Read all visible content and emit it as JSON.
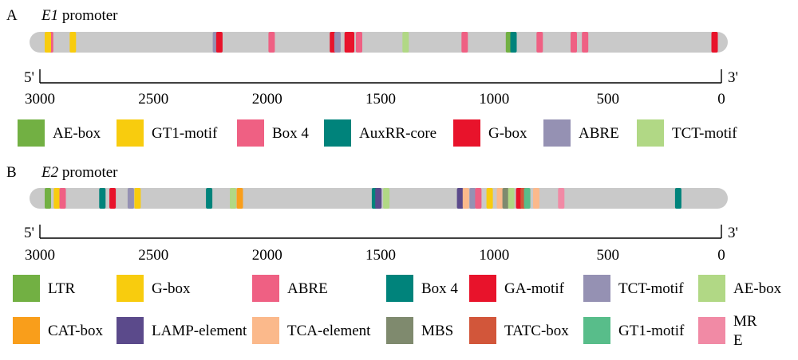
{
  "panels": [
    {
      "letter": "A",
      "gene": "E1",
      "title_suffix": " promoter",
      "end5": "5'",
      "end3": "3'",
      "ticks": [
        3000,
        2500,
        2000,
        1500,
        1000,
        500,
        0
      ],
      "elements": [
        {
          "pos": 2955,
          "type": "Box 4"
        },
        {
          "pos": 2965,
          "type": "GT1-motif"
        },
        {
          "pos": 2855,
          "type": "GT1-motif"
        },
        {
          "pos": 2225,
          "type": "ABRE"
        },
        {
          "pos": 2210,
          "type": "G-box"
        },
        {
          "pos": 1980,
          "type": "Box 4"
        },
        {
          "pos": 1710,
          "type": "G-box"
        },
        {
          "pos": 1690,
          "type": "ABRE"
        },
        {
          "pos": 1645,
          "type": "G-box"
        },
        {
          "pos": 1630,
          "type": "G-box"
        },
        {
          "pos": 1595,
          "type": "Box 4"
        },
        {
          "pos": 1390,
          "type": "TCT-motif"
        },
        {
          "pos": 1130,
          "type": "Box 4"
        },
        {
          "pos": 935,
          "type": "AE-box"
        },
        {
          "pos": 915,
          "type": "AuxRR-core"
        },
        {
          "pos": 800,
          "type": "Box 4"
        },
        {
          "pos": 650,
          "type": "Box 4"
        },
        {
          "pos": 600,
          "type": "Box 4"
        },
        {
          "pos": 30,
          "type": "G-box"
        }
      ],
      "legend": [
        {
          "label": "AE-box",
          "color": "#72b043"
        },
        {
          "label": "GT1-motif",
          "color": "#f8cc0e"
        },
        {
          "label": "Box 4",
          "color": "#ef6083"
        },
        {
          "label": "AuxRR-core",
          "color": "#00837b"
        },
        {
          "label": "G-box",
          "color": "#e8132b"
        },
        {
          "label": "ABRE",
          "color": "#9591b3"
        },
        {
          "label": "TCT-motif",
          "color": "#b1d885"
        }
      ]
    },
    {
      "letter": "B",
      "gene": "E2",
      "title_suffix": " promoter",
      "end5": "5'",
      "end3": "3'",
      "ticks": [
        3000,
        2500,
        2000,
        1500,
        1000,
        500,
        0
      ],
      "elements": [
        {
          "pos": 2965,
          "type": "LTR"
        },
        {
          "pos": 2925,
          "type": "G-box"
        },
        {
          "pos": 2900,
          "type": "ABRE"
        },
        {
          "pos": 2725,
          "type": "Box 4"
        },
        {
          "pos": 2680,
          "type": "GA-motif"
        },
        {
          "pos": 2600,
          "type": "TCT-motif"
        },
        {
          "pos": 2570,
          "type": "G-box"
        },
        {
          "pos": 2255,
          "type": "Box 4"
        },
        {
          "pos": 2150,
          "type": "AE-box"
        },
        {
          "pos": 2120,
          "type": "CAT-box"
        },
        {
          "pos": 1525,
          "type": "Box 4"
        },
        {
          "pos": 1510,
          "type": "LAMP-element"
        },
        {
          "pos": 1475,
          "type": "AE-box"
        },
        {
          "pos": 1150,
          "type": "LAMP-element"
        },
        {
          "pos": 1125,
          "type": "TCA-element"
        },
        {
          "pos": 1095,
          "type": "TCT-motif"
        },
        {
          "pos": 1070,
          "type": "ABRE"
        },
        {
          "pos": 1020,
          "type": "G-box"
        },
        {
          "pos": 975,
          "type": "TCA-element"
        },
        {
          "pos": 950,
          "type": "MBS"
        },
        {
          "pos": 925,
          "type": "AE-box"
        },
        {
          "pos": 890,
          "type": "GA-motif"
        },
        {
          "pos": 870,
          "type": "TATC-box"
        },
        {
          "pos": 855,
          "type": "GT1-motif"
        },
        {
          "pos": 815,
          "type": "TCA-element"
        },
        {
          "pos": 705,
          "type": "MRE"
        },
        {
          "pos": 190,
          "type": "Box 4"
        }
      ],
      "legend": [
        {
          "label": "LTR",
          "color": "#72b043"
        },
        {
          "label": "G-box",
          "color": "#f8cc0e"
        },
        {
          "label": "ABRE",
          "color": "#ef6083"
        },
        {
          "label": "Box 4",
          "color": "#00837b"
        },
        {
          "label": "GA-motif",
          "color": "#e8132b"
        },
        {
          "label": "TCT-motif",
          "color": "#9591b3"
        },
        {
          "label": "AE-box",
          "color": "#b1d885"
        },
        {
          "label": "CAT-box",
          "color": "#f99e1b"
        },
        {
          "label": "LAMP-element",
          "color": "#5b4a8b"
        },
        {
          "label": "TCA-element",
          "color": "#fbb98b"
        },
        {
          "label": "MBS",
          "color": "#7f8a6e"
        },
        {
          "label": "TATC-box",
          "color": "#d2563a"
        },
        {
          "label": "GT1-motif",
          "color": "#58bd8a"
        },
        {
          "label": "MRE",
          "color": "#f18aa5"
        }
      ]
    }
  ]
}
